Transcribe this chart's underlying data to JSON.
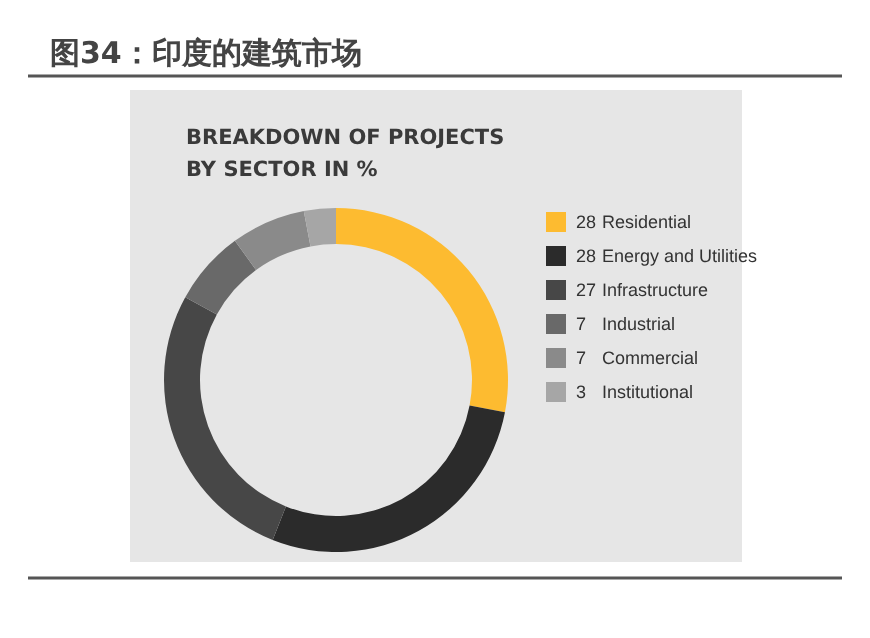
{
  "chart_data": {
    "type": "donut",
    "title": "图34：印度的建筑市场",
    "subtitle": "BREAKDOWN OF PROJECTS BY SECTOR IN %",
    "categories": [
      "Residential",
      "Energy and Utilities",
      "Infrastructure",
      "Industrial",
      "Commercial",
      "Institutional"
    ],
    "values": [
      28,
      28,
      27,
      7,
      7,
      3
    ],
    "colors": [
      "#fdbb30",
      "#2b2b2b",
      "#474747",
      "#696969",
      "#8a8a8a",
      "#a6a6a6"
    ],
    "data_labels": true,
    "legend": "right"
  }
}
